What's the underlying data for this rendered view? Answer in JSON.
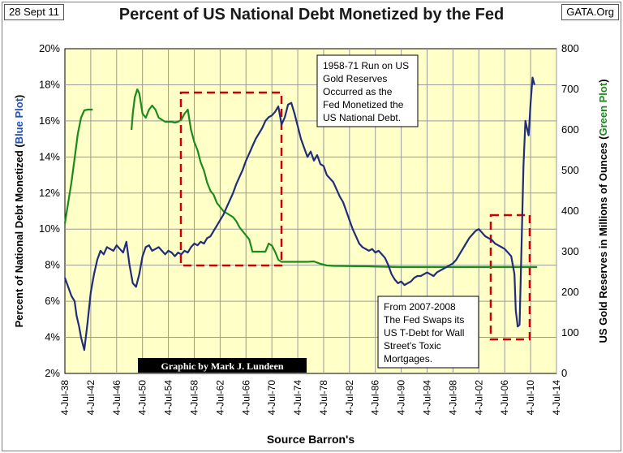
{
  "header": {
    "date": "28 Sept 11",
    "site": "GATA.Org"
  },
  "chart_data": {
    "type": "line",
    "title": "Percent of US National Debt Monetized by the Fed",
    "xlabel": "Source Barron's",
    "ylabel_left": [
      "Percent of National Debt Monetized (",
      "Blue Plot",
      ")"
    ],
    "ylabel_right": [
      "US Gold Reserves in Millions of Ounces (",
      "Green Plot",
      ")"
    ],
    "x_ticks": [
      "4-Jul-38",
      "4-Jul-42",
      "4-Jul-46",
      "4-Jul-50",
      "4-Jul-54",
      "4-Jul-58",
      "4-Jul-62",
      "4-Jul-66",
      "4-Jul-70",
      "4-Jul-74",
      "4-Jul-78",
      "4-Jul-82",
      "4-Jul-86",
      "4-Jul-90",
      "4-Jul-94",
      "4-Jul-98",
      "4-Jul-02",
      "4-Jul-06",
      "4-Jul-10",
      "4-Jul-14"
    ],
    "xlim": [
      1938.5,
      2014.5
    ],
    "ylim_left": [
      2,
      20
    ],
    "y_ticks_left": [
      "2%",
      "4%",
      "6%",
      "8%",
      "10%",
      "12%",
      "14%",
      "16%",
      "18%",
      "20%"
    ],
    "ylim_right": [
      0,
      800
    ],
    "y_ticks_right": [
      "0",
      "100",
      "200",
      "300",
      "400",
      "500",
      "600",
      "700",
      "800"
    ],
    "grid": true,
    "colors": {
      "plot_bg": "#ffffc8",
      "blue": "#1f2d7a",
      "green": "#1a8a1a",
      "red_box": "#cc0000",
      "credit_bg": "#000000"
    },
    "series": [
      {
        "name": "Blue Plot",
        "axis": "left",
        "points": [
          [
            1938.5,
            7.3
          ],
          [
            1939.0,
            6.8
          ],
          [
            1939.5,
            6.3
          ],
          [
            1940.0,
            6.0
          ],
          [
            1940.3,
            5.2
          ],
          [
            1940.7,
            4.6
          ],
          [
            1941.0,
            4.0
          ],
          [
            1941.5,
            3.3
          ],
          [
            1942.0,
            4.8
          ],
          [
            1942.5,
            6.5
          ],
          [
            1943.0,
            7.5
          ],
          [
            1943.5,
            8.3
          ],
          [
            1944.0,
            8.8
          ],
          [
            1944.5,
            8.6
          ],
          [
            1945.0,
            9.0
          ],
          [
            1945.5,
            8.9
          ],
          [
            1946.0,
            8.8
          ],
          [
            1946.5,
            9.1
          ],
          [
            1947.0,
            8.9
          ],
          [
            1947.5,
            8.7
          ],
          [
            1948.0,
            9.3
          ],
          [
            1948.5,
            8.0
          ],
          [
            1949.0,
            7.0
          ],
          [
            1949.5,
            6.8
          ],
          [
            1950.0,
            7.5
          ],
          [
            1950.5,
            8.5
          ],
          [
            1951.0,
            9.0
          ],
          [
            1951.5,
            9.1
          ],
          [
            1952.0,
            8.8
          ],
          [
            1952.5,
            8.9
          ],
          [
            1953.0,
            9.0
          ],
          [
            1953.5,
            8.8
          ],
          [
            1954.0,
            8.6
          ],
          [
            1954.5,
            8.8
          ],
          [
            1955.0,
            8.7
          ],
          [
            1955.5,
            8.5
          ],
          [
            1956.0,
            8.7
          ],
          [
            1956.5,
            8.6
          ],
          [
            1957.0,
            8.8
          ],
          [
            1957.5,
            8.7
          ],
          [
            1958.0,
            9.0
          ],
          [
            1958.5,
            9.2
          ],
          [
            1959.0,
            9.1
          ],
          [
            1959.5,
            9.3
          ],
          [
            1960.0,
            9.2
          ],
          [
            1960.5,
            9.5
          ],
          [
            1961.0,
            9.6
          ],
          [
            1961.5,
            9.9
          ],
          [
            1962.0,
            10.2
          ],
          [
            1962.5,
            10.5
          ],
          [
            1963.0,
            10.8
          ],
          [
            1963.5,
            11.2
          ],
          [
            1964.0,
            11.6
          ],
          [
            1964.5,
            12.0
          ],
          [
            1965.0,
            12.5
          ],
          [
            1965.5,
            12.9
          ],
          [
            1966.0,
            13.3
          ],
          [
            1966.5,
            13.8
          ],
          [
            1967.0,
            14.2
          ],
          [
            1967.5,
            14.6
          ],
          [
            1968.0,
            15.0
          ],
          [
            1968.5,
            15.3
          ],
          [
            1969.0,
            15.6
          ],
          [
            1969.5,
            16.0
          ],
          [
            1970.0,
            16.2
          ],
          [
            1970.5,
            16.3
          ],
          [
            1971.0,
            16.5
          ],
          [
            1971.5,
            16.8
          ],
          [
            1972.0,
            15.8
          ],
          [
            1972.5,
            16.2
          ],
          [
            1973.0,
            16.9
          ],
          [
            1973.5,
            17.0
          ],
          [
            1974.0,
            16.4
          ],
          [
            1974.5,
            15.7
          ],
          [
            1975.0,
            15.0
          ],
          [
            1975.5,
            14.5
          ],
          [
            1976.0,
            14.0
          ],
          [
            1976.5,
            14.3
          ],
          [
            1977.0,
            13.8
          ],
          [
            1977.5,
            14.1
          ],
          [
            1978.0,
            13.6
          ],
          [
            1978.5,
            13.5
          ],
          [
            1979.0,
            13.0
          ],
          [
            1979.5,
            12.8
          ],
          [
            1980.0,
            12.6
          ],
          [
            1980.5,
            12.2
          ],
          [
            1981.0,
            11.8
          ],
          [
            1981.5,
            11.5
          ],
          [
            1982.0,
            11.0
          ],
          [
            1982.5,
            10.5
          ],
          [
            1983.0,
            10.0
          ],
          [
            1983.5,
            9.6
          ],
          [
            1984.0,
            9.2
          ],
          [
            1984.5,
            9.0
          ],
          [
            1985.0,
            8.9
          ],
          [
            1985.5,
            8.8
          ],
          [
            1986.0,
            8.9
          ],
          [
            1986.5,
            8.7
          ],
          [
            1987.0,
            8.8
          ],
          [
            1987.5,
            8.6
          ],
          [
            1988.0,
            8.4
          ],
          [
            1988.5,
            8.0
          ],
          [
            1989.0,
            7.5
          ],
          [
            1989.5,
            7.2
          ],
          [
            1990.0,
            7.0
          ],
          [
            1990.5,
            7.1
          ],
          [
            1991.0,
            6.9
          ],
          [
            1991.5,
            7.0
          ],
          [
            1992.0,
            7.1
          ],
          [
            1992.5,
            7.3
          ],
          [
            1993.0,
            7.4
          ],
          [
            1993.5,
            7.4
          ],
          [
            1994.0,
            7.5
          ],
          [
            1994.5,
            7.6
          ],
          [
            1995.0,
            7.5
          ],
          [
            1995.5,
            7.4
          ],
          [
            1996.0,
            7.6
          ],
          [
            1996.5,
            7.7
          ],
          [
            1997.0,
            7.8
          ],
          [
            1997.5,
            7.9
          ],
          [
            1998.0,
            8.0
          ],
          [
            1998.5,
            8.1
          ],
          [
            1999.0,
            8.3
          ],
          [
            1999.5,
            8.6
          ],
          [
            2000.0,
            8.9
          ],
          [
            2000.5,
            9.2
          ],
          [
            2001.0,
            9.5
          ],
          [
            2001.5,
            9.7
          ],
          [
            2002.0,
            9.9
          ],
          [
            2002.5,
            10.0
          ],
          [
            2003.0,
            9.8
          ],
          [
            2003.5,
            9.6
          ],
          [
            2004.0,
            9.5
          ],
          [
            2004.5,
            9.4
          ],
          [
            2005.0,
            9.2
          ],
          [
            2005.5,
            9.1
          ],
          [
            2006.0,
            9.0
          ],
          [
            2006.5,
            8.9
          ],
          [
            2007.0,
            8.7
          ],
          [
            2007.5,
            8.5
          ],
          [
            2008.0,
            7.5
          ],
          [
            2008.2,
            5.5
          ],
          [
            2008.5,
            4.6
          ],
          [
            2008.8,
            4.7
          ],
          [
            2009.1,
            9.0
          ],
          [
            2009.4,
            13.5
          ],
          [
            2009.7,
            16.0
          ],
          [
            2010.0,
            15.5
          ],
          [
            2010.2,
            15.2
          ],
          [
            2010.5,
            17.0
          ],
          [
            2010.8,
            18.4
          ],
          [
            2011.1,
            18.0
          ]
        ]
      },
      {
        "name": "Green Plot",
        "axis": "right",
        "points": [
          [
            1938.5,
            370
          ],
          [
            1939.0,
            420
          ],
          [
            1939.5,
            470
          ],
          [
            1940.0,
            530
          ],
          [
            1940.5,
            590
          ],
          [
            1941.0,
            630
          ],
          [
            1941.5,
            648
          ],
          [
            1942.0,
            650
          ],
          [
            1942.8,
            650
          ],
          null,
          [
            1948.8,
            600
          ],
          [
            1949.0,
            640
          ],
          [
            1949.3,
            680
          ],
          [
            1949.7,
            700
          ],
          [
            1950.0,
            690
          ],
          [
            1950.5,
            640
          ],
          [
            1951.0,
            630
          ],
          [
            1951.5,
            650
          ],
          [
            1952.0,
            660
          ],
          [
            1952.5,
            650
          ],
          [
            1953.0,
            630
          ],
          [
            1953.5,
            625
          ],
          [
            1954.0,
            620
          ],
          [
            1954.5,
            620
          ],
          [
            1955.0,
            620
          ],
          [
            1955.5,
            618
          ],
          [
            1956.0,
            620
          ],
          [
            1956.5,
            625
          ],
          [
            1957.0,
            640
          ],
          [
            1957.5,
            650
          ],
          [
            1958.0,
            600
          ],
          [
            1958.5,
            570
          ],
          [
            1959.0,
            550
          ],
          [
            1959.5,
            520
          ],
          [
            1960.0,
            500
          ],
          [
            1960.5,
            470
          ],
          [
            1961.0,
            450
          ],
          [
            1961.5,
            440
          ],
          [
            1962.0,
            420
          ],
          [
            1962.5,
            410
          ],
          [
            1963.0,
            400
          ],
          [
            1963.5,
            395
          ],
          [
            1964.0,
            390
          ],
          [
            1964.5,
            385
          ],
          [
            1965.0,
            375
          ],
          [
            1965.5,
            360
          ],
          [
            1966.0,
            350
          ],
          [
            1966.5,
            340
          ],
          [
            1967.0,
            330
          ],
          [
            1967.5,
            300
          ],
          [
            1968.0,
            300
          ],
          [
            1969.0,
            300
          ],
          [
            1969.5,
            300
          ],
          [
            1970.0,
            320
          ],
          [
            1970.5,
            315
          ],
          [
            1971.0,
            300
          ],
          [
            1971.5,
            280
          ],
          [
            1972.0,
            275
          ],
          [
            1972.3,
            275
          ],
          [
            1973.0,
            275
          ],
          [
            1974.0,
            275
          ],
          [
            1975.0,
            275
          ],
          [
            1976.0,
            275
          ],
          [
            1977.0,
            276
          ],
          [
            1978.0,
            270
          ],
          [
            1979.0,
            266
          ],
          [
            1980.0,
            265
          ],
          [
            1985.0,
            264
          ],
          [
            1990.0,
            262
          ],
          [
            1995.0,
            262
          ],
          [
            2000.0,
            262
          ],
          [
            2005.0,
            262
          ],
          [
            2011.5,
            262
          ]
        ]
      }
    ],
    "annotations": {
      "box1_text": [
        "1958-71 Run on US",
        "Gold Reserves",
        "Occurred as the",
        "Fed Monetized the",
        "US National Debt."
      ],
      "box2_text": [
        "From 2007-2008",
        "The Fed Swaps its",
        "US T-Debt for Wall",
        "Street's Toxic",
        "Mortgages."
      ],
      "credit": "Graphic by Mark J. Lundeen"
    }
  }
}
